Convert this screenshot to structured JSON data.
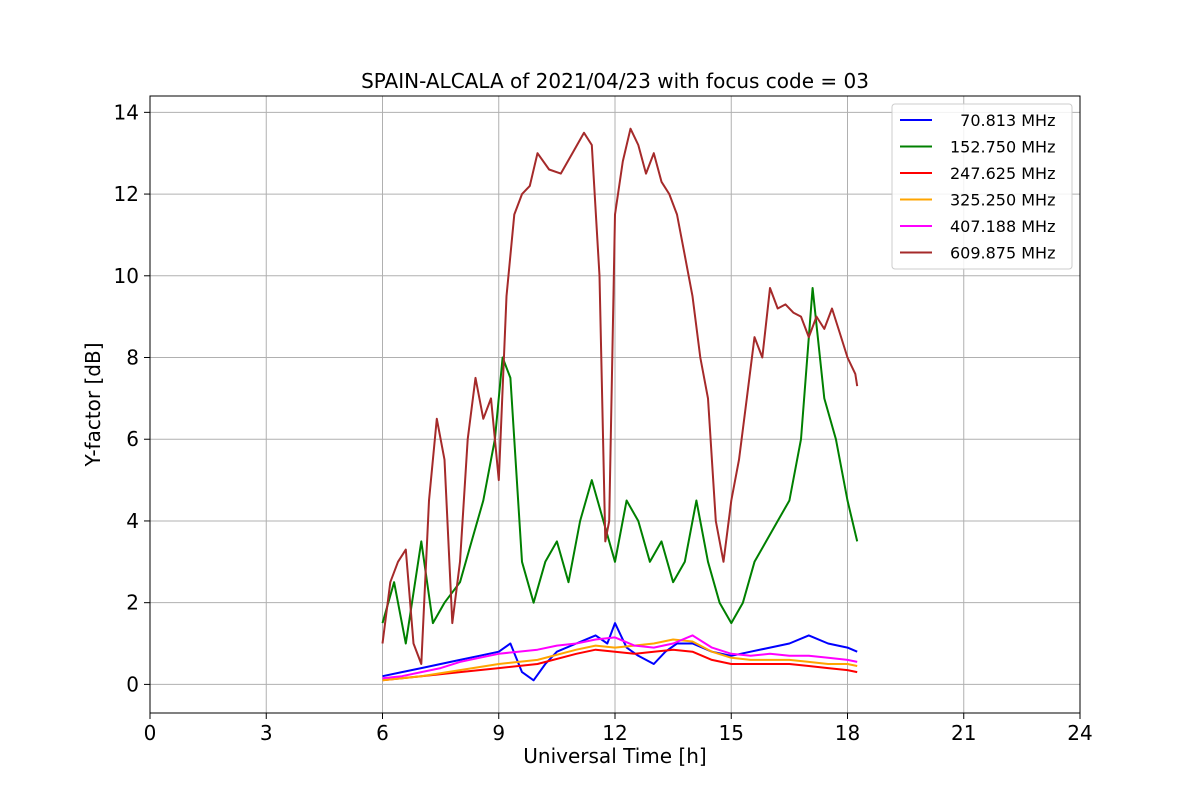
{
  "chart_data": {
    "type": "line",
    "title": "SPAIN-ALCALA of 2021/04/23 with focus code = 03",
    "xlabel": "Universal Time [h]",
    "ylabel": "Y-factor [dB]",
    "xlim": [
      0,
      24
    ],
    "ylim": [
      -0.7,
      14.4
    ],
    "xticks": [
      0,
      3,
      6,
      9,
      12,
      15,
      18,
      21,
      24
    ],
    "yticks": [
      0,
      2,
      4,
      6,
      8,
      10,
      12,
      14
    ],
    "grid": true,
    "legend_position": "top-right",
    "series": [
      {
        "name": "  70.813 MHz",
        "color": "#0000ff",
        "x": [
          6.0,
          6.5,
          7.0,
          7.5,
          8.0,
          8.5,
          9.0,
          9.3,
          9.6,
          9.9,
          10.2,
          10.5,
          11.0,
          11.5,
          11.8,
          12.0,
          12.3,
          12.6,
          13.0,
          13.3,
          13.6,
          14.0,
          14.5,
          15.0,
          15.5,
          16.0,
          16.5,
          17.0,
          17.5,
          18.0,
          18.25
        ],
        "y": [
          0.2,
          0.3,
          0.4,
          0.5,
          0.6,
          0.7,
          0.8,
          1.0,
          0.3,
          0.1,
          0.5,
          0.8,
          1.0,
          1.2,
          1.0,
          1.5,
          0.9,
          0.7,
          0.5,
          0.8,
          1.0,
          1.0,
          0.8,
          0.7,
          0.8,
          0.9,
          1.0,
          1.2,
          1.0,
          0.9,
          0.8
        ]
      },
      {
        "name": "152.750 MHz",
        "color": "#008000",
        "x": [
          6.0,
          6.3,
          6.6,
          7.0,
          7.3,
          7.6,
          8.0,
          8.3,
          8.6,
          8.9,
          9.1,
          9.3,
          9.6,
          9.9,
          10.2,
          10.5,
          10.8,
          11.1,
          11.4,
          11.7,
          12.0,
          12.3,
          12.6,
          12.9,
          13.2,
          13.5,
          13.8,
          14.1,
          14.4,
          14.7,
          15.0,
          15.3,
          15.6,
          15.9,
          16.2,
          16.5,
          16.8,
          17.1,
          17.4,
          17.7,
          18.0,
          18.25
        ],
        "y": [
          1.5,
          2.5,
          1.0,
          3.5,
          1.5,
          2.0,
          2.5,
          3.5,
          4.5,
          6.0,
          8.0,
          7.5,
          3.0,
          2.0,
          3.0,
          3.5,
          2.5,
          4.0,
          5.0,
          4.0,
          3.0,
          4.5,
          4.0,
          3.0,
          3.5,
          2.5,
          3.0,
          4.5,
          3.0,
          2.0,
          1.5,
          2.0,
          3.0,
          3.5,
          4.0,
          4.5,
          6.0,
          9.7,
          7.0,
          6.0,
          4.5,
          3.5
        ]
      },
      {
        "name": "247.625 MHz",
        "color": "#ff0000",
        "x": [
          6.0,
          7.0,
          8.0,
          9.0,
          10.0,
          11.0,
          11.5,
          12.0,
          12.5,
          13.0,
          13.5,
          14.0,
          14.5,
          15.0,
          15.5,
          16.0,
          16.5,
          17.0,
          17.5,
          18.0,
          18.25
        ],
        "y": [
          0.1,
          0.2,
          0.3,
          0.4,
          0.5,
          0.75,
          0.85,
          0.8,
          0.75,
          0.8,
          0.85,
          0.8,
          0.6,
          0.5,
          0.5,
          0.5,
          0.5,
          0.45,
          0.4,
          0.35,
          0.3
        ]
      },
      {
        "name": "325.250 MHz",
        "color": "#ffa500",
        "x": [
          6.0,
          7.0,
          8.0,
          9.0,
          10.0,
          11.0,
          11.5,
          12.0,
          12.5,
          13.0,
          13.5,
          14.0,
          14.5,
          15.0,
          15.5,
          16.0,
          16.5,
          17.0,
          17.5,
          18.0,
          18.25
        ],
        "y": [
          0.1,
          0.2,
          0.35,
          0.5,
          0.6,
          0.85,
          0.95,
          0.9,
          0.95,
          1.0,
          1.1,
          1.05,
          0.8,
          0.65,
          0.6,
          0.6,
          0.6,
          0.55,
          0.5,
          0.5,
          0.45
        ]
      },
      {
        "name": "407.188 MHz",
        "color": "#ff00ff",
        "x": [
          6.0,
          6.5,
          7.0,
          7.5,
          8.0,
          8.5,
          9.0,
          9.5,
          10.0,
          10.5,
          11.0,
          11.5,
          12.0,
          12.5,
          13.0,
          13.5,
          14.0,
          14.5,
          15.0,
          15.5,
          16.0,
          16.5,
          17.0,
          17.5,
          18.0,
          18.25
        ],
        "y": [
          0.15,
          0.2,
          0.3,
          0.4,
          0.55,
          0.65,
          0.75,
          0.8,
          0.85,
          0.95,
          1.0,
          1.1,
          1.15,
          0.95,
          0.9,
          1.0,
          1.2,
          0.9,
          0.75,
          0.7,
          0.75,
          0.7,
          0.7,
          0.65,
          0.6,
          0.55
        ]
      },
      {
        "name": "609.875 MHz",
        "color": "#a52a2a",
        "x": [
          6.0,
          6.2,
          6.4,
          6.6,
          6.8,
          7.0,
          7.2,
          7.4,
          7.6,
          7.8,
          8.0,
          8.2,
          8.4,
          8.6,
          8.8,
          9.0,
          9.2,
          9.4,
          9.6,
          9.8,
          10.0,
          10.3,
          10.6,
          10.9,
          11.2,
          11.4,
          11.6,
          11.75,
          11.85,
          12.0,
          12.2,
          12.4,
          12.6,
          12.8,
          13.0,
          13.2,
          13.4,
          13.6,
          13.8,
          14.0,
          14.2,
          14.4,
          14.6,
          14.8,
          15.0,
          15.2,
          15.4,
          15.6,
          15.8,
          16.0,
          16.2,
          16.4,
          16.6,
          16.8,
          17.0,
          17.2,
          17.4,
          17.6,
          17.8,
          18.0,
          18.2,
          18.25
        ],
        "y": [
          1.0,
          2.5,
          3.0,
          3.3,
          1.0,
          0.5,
          4.5,
          6.5,
          5.5,
          1.5,
          3.0,
          6.0,
          7.5,
          6.5,
          7.0,
          5.0,
          9.5,
          11.5,
          12.0,
          12.2,
          13.0,
          12.6,
          12.5,
          13.0,
          13.5,
          13.2,
          10.0,
          3.5,
          4.0,
          11.5,
          12.8,
          13.6,
          13.2,
          12.5,
          13.0,
          12.3,
          12.0,
          11.5,
          10.5,
          9.5,
          8.0,
          7.0,
          4.0,
          3.0,
          4.5,
          5.5,
          7.0,
          8.5,
          8.0,
          9.7,
          9.2,
          9.3,
          9.1,
          9.0,
          8.5,
          9.0,
          8.7,
          9.2,
          8.6,
          8.0,
          7.6,
          7.3
        ]
      }
    ]
  }
}
